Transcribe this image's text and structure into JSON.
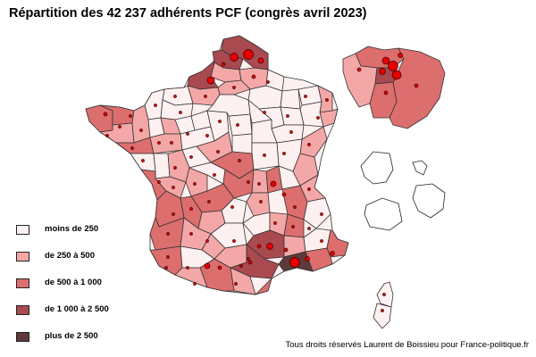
{
  "title": "Répartition des 42 237 adhérents PCF (congrès avril 2023)",
  "legend": [
    {
      "label": "moins de 250",
      "color": "#fdf0f0"
    },
    {
      "label": "de 250 à 500",
      "color": "#f4a7a7"
    },
    {
      "label": "de 500 à 1 000",
      "color": "#dd6e6e"
    },
    {
      "label": "de 1 000 à 2 500",
      "color": "#a84a50"
    },
    {
      "label": "plus de 2 500",
      "color": "#5e3a3c"
    }
  ],
  "credit": "Tous droits réservés Laurent de Boissieu pour France-politique.fr",
  "colors": {
    "border": "#333333",
    "dot_fill": "#e60000",
    "dot_stroke": "#400000"
  }
}
